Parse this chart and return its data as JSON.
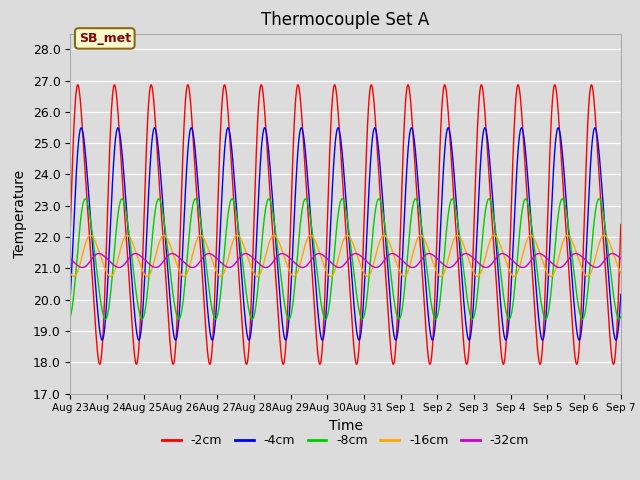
{
  "title": "Thermocouple Set A",
  "xlabel": "Time",
  "ylabel": "Temperature",
  "ylim": [
    17.0,
    28.5
  ],
  "yticks": [
    17.0,
    18.0,
    19.0,
    20.0,
    21.0,
    22.0,
    23.0,
    24.0,
    25.0,
    26.0,
    27.0,
    28.0
  ],
  "num_days": 15,
  "num_points_per_day": 96,
  "lines": [
    {
      "label": "-2cm",
      "color": "#FF0000",
      "amplitude": 4.2,
      "mean": 22.4,
      "phase_shift": 0.0,
      "harmonic2_amp": 0.8,
      "harmonic2_phase": 0.0
    },
    {
      "label": "-4cm",
      "color": "#0000FF",
      "amplitude": 3.3,
      "mean": 22.1,
      "phase_shift": 0.08,
      "harmonic2_amp": 0.4,
      "harmonic2_phase": 0.08
    },
    {
      "label": "-8cm",
      "color": "#00CC00",
      "amplitude": 1.9,
      "mean": 21.3,
      "phase_shift": 0.18,
      "harmonic2_amp": 0.15,
      "harmonic2_phase": 0.18
    },
    {
      "label": "-16cm",
      "color": "#FFA500",
      "amplitude": 0.65,
      "mean": 21.4,
      "phase_shift": 0.32,
      "harmonic2_amp": 0.05,
      "harmonic2_phase": 0.32
    },
    {
      "label": "-32cm",
      "color": "#CC00CC",
      "amplitude": 0.22,
      "mean": 21.25,
      "phase_shift": 0.55,
      "harmonic2_amp": 0.02,
      "harmonic2_phase": 0.55
    }
  ],
  "xtick_labels": [
    "Aug 23",
    "Aug 24",
    "Aug 25",
    "Aug 26",
    "Aug 27",
    "Aug 28",
    "Aug 29",
    "Aug 30",
    "Aug 31",
    "Sep 1",
    "Sep 2",
    "Sep 3",
    "Sep 4",
    "Sep 5",
    "Sep 6",
    "Sep 7"
  ],
  "annotation_text": "SB_met",
  "bg_color": "#DCDCDC",
  "grid_color": "#FFFFFF",
  "title_fontsize": 12,
  "axis_fontsize": 9,
  "label_fontsize": 10
}
